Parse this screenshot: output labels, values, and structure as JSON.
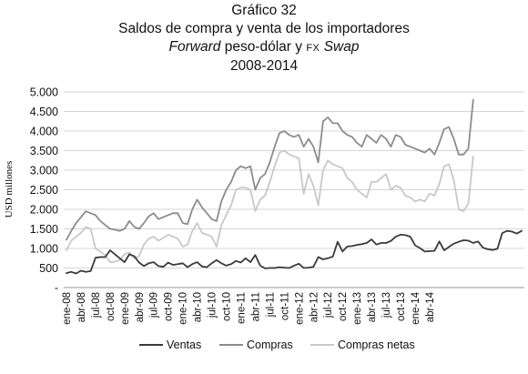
{
  "title": {
    "line1": "Gráfico 32",
    "line2": "Saldos de compra y venta de los importadores",
    "line3_a": "Forward",
    "line3_b": " peso-dólar y ",
    "line3_c": "FX",
    "line3_d": " ",
    "line3_e": "Swap",
    "line4": "2008-2014"
  },
  "chart_data": {
    "type": "line",
    "ylabel": "USD millones",
    "ylim": [
      0,
      5000
    ],
    "yticks": [
      {
        "v": 0,
        "label": "-"
      },
      {
        "v": 500,
        "label": "500"
      },
      {
        "v": 1000,
        "label": "1.000"
      },
      {
        "v": 1500,
        "label": "1.500"
      },
      {
        "v": 2000,
        "label": "2.000"
      },
      {
        "v": 2500,
        "label": "2.500"
      },
      {
        "v": 3000,
        "label": "3.000"
      },
      {
        "v": 3500,
        "label": "3.500"
      },
      {
        "v": 4000,
        "label": "4.000"
      },
      {
        "v": 4500,
        "label": "4.500"
      },
      {
        "v": 5000,
        "label": "5.000"
      }
    ],
    "x_tick_labels": [
      "ene-08",
      "abr-08",
      "jul-08",
      "oct-08",
      "ene-09",
      "abr-09",
      "jul-09",
      "oct-09",
      "ene-10",
      "abr-10",
      "jul-10",
      "oct-10",
      "ene-11",
      "abr-11",
      "jul-11",
      "oct-11",
      "ene-12",
      "abr-12",
      "jul-12",
      "oct-12",
      "ene-13",
      "abr-13",
      "jul-13",
      "oct-13",
      "ene-14",
      "abr-14"
    ],
    "legend_position": "bottom",
    "series": [
      {
        "name": "Ventas",
        "color": "#3a3a3a",
        "values": [
          370,
          400,
          360,
          430,
          400,
          420,
          760,
          780,
          780,
          950,
          850,
          750,
          650,
          850,
          800,
          640,
          550,
          620,
          650,
          550,
          530,
          640,
          580,
          600,
          620,
          520,
          600,
          650,
          540,
          520,
          620,
          700,
          620,
          560,
          600,
          680,
          640,
          750,
          650,
          830,
          560,
          490,
          500,
          500,
          520,
          510,
          500,
          560,
          610,
          500,
          510,
          530,
          780,
          720,
          750,
          790,
          1170,
          920,
          1050,
          1060,
          1090,
          1110,
          1140,
          1230,
          1100,
          1140,
          1140,
          1190,
          1300,
          1350,
          1340,
          1300,
          1080,
          1010,
          920,
          930,
          940,
          1180,
          950,
          1040,
          1120,
          1170,
          1210,
          1200,
          1140,
          1180,
          1020,
          980,
          960,
          990,
          1390,
          1450,
          1430,
          1380,
          1450
        ]
      },
      {
        "name": "Compras",
        "color": "#8c8c8c",
        "values": [
          1220,
          1450,
          1650,
          1800,
          1950,
          1900,
          1850,
          1700,
          1600,
          1500,
          1480,
          1450,
          1500,
          1700,
          1550,
          1500,
          1650,
          1820,
          1900,
          1750,
          1800,
          1850,
          1900,
          1900,
          1650,
          1620,
          2000,
          2250,
          2050,
          1900,
          1750,
          1700,
          2200,
          2500,
          2700,
          3000,
          3100,
          3050,
          3100,
          2500,
          2800,
          2900,
          3200,
          3600,
          3950,
          4000,
          3900,
          3850,
          3900,
          3600,
          3800,
          3600,
          3200,
          4250,
          4350,
          4200,
          4200,
          4000,
          3900,
          3850,
          3700,
          3600,
          3900,
          3800,
          3700,
          3900,
          3800,
          3600,
          3900,
          3850,
          3650,
          3600,
          3550,
          3500,
          3450,
          3550,
          3400,
          3700,
          4050,
          4100,
          3800,
          3400,
          3400,
          3550,
          4800
        ]
      },
      {
        "name": "Compras netas",
        "color": "#c8c8c8",
        "values": [
          950,
          1200,
          1300,
          1400,
          1550,
          1500,
          1000,
          920,
          830,
          650,
          660,
          700,
          850,
          900,
          750,
          800,
          1100,
          1250,
          1300,
          1200,
          1270,
          1350,
          1300,
          1250,
          1050,
          1100,
          1450,
          1650,
          1400,
          1350,
          1300,
          1050,
          1600,
          1850,
          2100,
          2500,
          2550,
          2550,
          2500,
          1950,
          2250,
          2350,
          2700,
          3100,
          3450,
          3500,
          3400,
          3350,
          3300,
          2400,
          2900,
          2600,
          2100,
          3000,
          3250,
          3150,
          3100,
          3050,
          2800,
          2700,
          2500,
          2400,
          2300,
          2700,
          2700,
          2800,
          2900,
          2500,
          2600,
          2550,
          2350,
          2300,
          2200,
          2250,
          2200,
          2400,
          2350,
          2650,
          3100,
          3150,
          2750,
          2000,
          1950,
          2150,
          3350
        ]
      }
    ]
  },
  "legend": [
    {
      "label": "Ventas",
      "color": "#3a3a3a"
    },
    {
      "label": "Compras",
      "color": "#8c8c8c"
    },
    {
      "label": "Compras netas",
      "color": "#c8c8c8"
    }
  ]
}
